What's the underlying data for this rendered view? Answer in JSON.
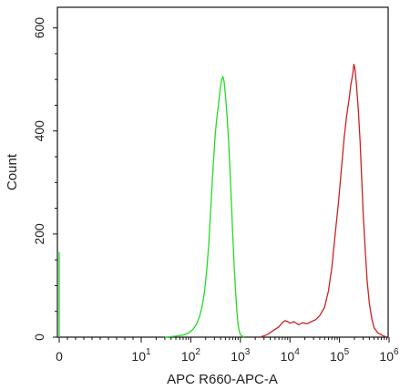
{
  "chart_data": {
    "type": "line",
    "title": "",
    "xlabel": "APC R660-APC-A",
    "ylabel": "Count",
    "x_scale": "log",
    "xlim": [
      0,
      1000000
    ],
    "ylim": [
      0,
      640
    ],
    "grid": false,
    "legend": "none",
    "y_ticks": [
      {
        "value": 0,
        "label": "0"
      },
      {
        "value": 200,
        "label": "200"
      },
      {
        "value": 400,
        "label": "400"
      },
      {
        "value": 600,
        "label": "600"
      }
    ],
    "x_ticks": [
      {
        "value": 0,
        "label": "0",
        "exp": ""
      },
      {
        "value": 10,
        "label": "10",
        "exp": "1"
      },
      {
        "value": 100,
        "label": "10",
        "exp": "2"
      },
      {
        "value": 1000,
        "label": "10",
        "exp": "3"
      },
      {
        "value": 10000,
        "label": "10",
        "exp": "4"
      },
      {
        "value": 100000,
        "label": "10",
        "exp": "5"
      },
      {
        "value": 1000000,
        "label": "10",
        "exp": "6"
      }
    ],
    "series": [
      {
        "color": "#22dd22",
        "points": [
          [
            30,
            0
          ],
          [
            50,
            2
          ],
          [
            70,
            4
          ],
          [
            90,
            8
          ],
          [
            110,
            15
          ],
          [
            130,
            25
          ],
          [
            150,
            40
          ],
          [
            170,
            60
          ],
          [
            190,
            90
          ],
          [
            210,
            130
          ],
          [
            230,
            180
          ],
          [
            250,
            240
          ],
          [
            270,
            300
          ],
          [
            290,
            350
          ],
          [
            310,
            390
          ],
          [
            330,
            420
          ],
          [
            360,
            450
          ],
          [
            390,
            480
          ],
          [
            420,
            500
          ],
          [
            445,
            505
          ],
          [
            470,
            495
          ],
          [
            500,
            470
          ],
          [
            540,
            430
          ],
          [
            580,
            380
          ],
          [
            620,
            320
          ],
          [
            660,
            260
          ],
          [
            700,
            200
          ],
          [
            750,
            140
          ],
          [
            800,
            90
          ],
          [
            850,
            50
          ],
          [
            900,
            25
          ],
          [
            950,
            12
          ],
          [
            1000,
            5
          ],
          [
            1100,
            2
          ],
          [
            1200,
            0
          ]
        ]
      },
      {
        "color": "#cc2222",
        "points": [
          [
            2500,
            0
          ],
          [
            3500,
            5
          ],
          [
            4500,
            12
          ],
          [
            6000,
            20
          ],
          [
            7000,
            28
          ],
          [
            8000,
            32
          ],
          [
            9000,
            30
          ],
          [
            10000,
            27
          ],
          [
            12000,
            30
          ],
          [
            15000,
            24
          ],
          [
            18000,
            28
          ],
          [
            22000,
            26
          ],
          [
            27000,
            30
          ],
          [
            33000,
            34
          ],
          [
            40000,
            42
          ],
          [
            50000,
            58
          ],
          [
            60000,
            90
          ],
          [
            70000,
            135
          ],
          [
            80000,
            190
          ],
          [
            95000,
            260
          ],
          [
            110000,
            330
          ],
          [
            125000,
            390
          ],
          [
            140000,
            430
          ],
          [
            155000,
            460
          ],
          [
            170000,
            490
          ],
          [
            185000,
            510
          ],
          [
            195000,
            530
          ],
          [
            205000,
            520
          ],
          [
            220000,
            490
          ],
          [
            240000,
            440
          ],
          [
            260000,
            380
          ],
          [
            280000,
            310
          ],
          [
            300000,
            240
          ],
          [
            330000,
            170
          ],
          [
            360000,
            110
          ],
          [
            400000,
            65
          ],
          [
            450000,
            35
          ],
          [
            500000,
            18
          ],
          [
            600000,
            8
          ],
          [
            750000,
            3
          ],
          [
            900000,
            0
          ]
        ]
      },
      {
        "color": "#22dd22",
        "points": [
          [
            0,
            0
          ],
          [
            0,
            165
          ]
        ]
      }
    ]
  }
}
